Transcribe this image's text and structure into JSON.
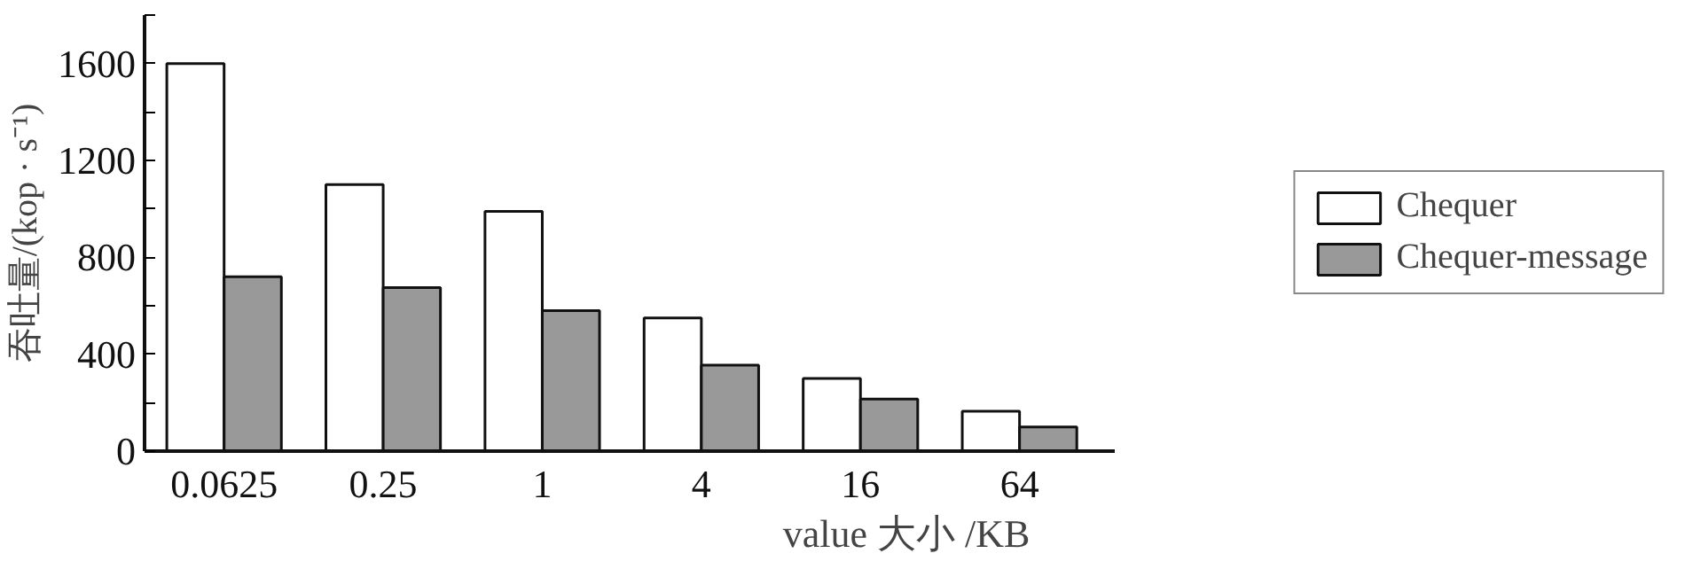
{
  "chart_data": {
    "type": "bar",
    "categories": [
      "0.0625",
      "0.25",
      "1",
      "4",
      "16",
      "64"
    ],
    "series": [
      {
        "name": "Chequer",
        "color": "#ffffff",
        "values": [
          1600,
          1100,
          990,
          550,
          300,
          165
        ]
      },
      {
        "name": "Chequer-message",
        "color": "#999999",
        "values": [
          720,
          675,
          580,
          355,
          215,
          100
        ]
      }
    ],
    "xlabel": "value 大小 /KB",
    "ylabel": "吞吐量/(kop · s⁻¹)",
    "ylim": [
      0,
      1800
    ],
    "yticks": [
      0,
      {
        "value": 200,
        "label": null
      },
      400,
      {
        "value": 600,
        "label": null
      },
      800,
      {
        "value": 1000,
        "label": null
      },
      1200,
      {
        "value": 1400,
        "label": null
      },
      1600,
      {
        "value": 1800,
        "label": null
      }
    ],
    "grid": false,
    "legend": "right"
  }
}
